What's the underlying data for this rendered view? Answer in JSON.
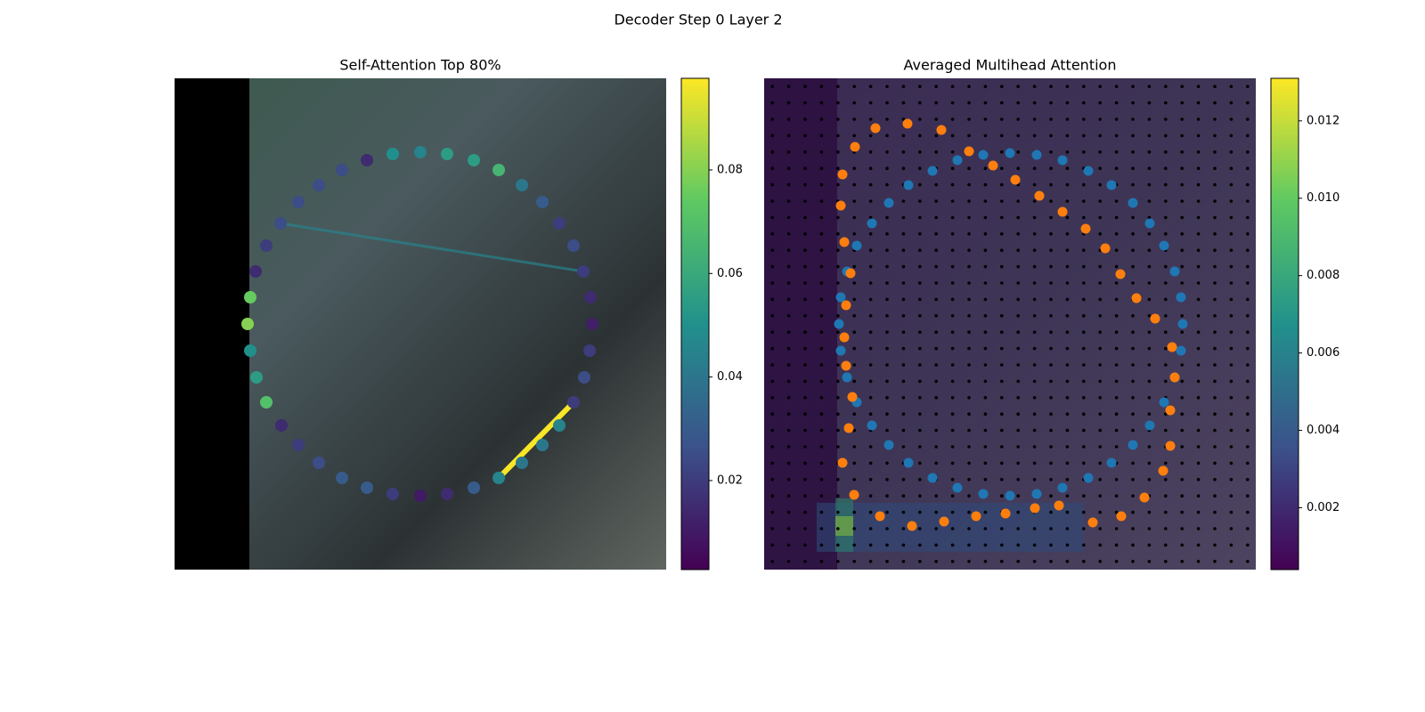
{
  "title": "Decoder Step 0 Layer 2",
  "chart_data": [
    {
      "type": "scatter",
      "title": "Self-Attention Top 80%",
      "xlim": [
        0,
        552
      ],
      "ylim": [
        552,
        0
      ],
      "x": [
        216,
        245,
        276,
        306,
        336,
        364,
        390,
        413,
        432,
        448,
        459,
        467,
        469,
        466,
        460,
        448,
        432,
        413,
        390,
        364,
        336,
        306,
        276,
        245,
        216,
        188,
        162,
        139,
        120,
        103,
        92,
        85,
        82,
        85,
        91,
        103,
        119,
        139,
        162,
        188
      ],
      "y": [
        92,
        85,
        83,
        85,
        92,
        103,
        120,
        139,
        163,
        188,
        217,
        246,
        276,
        306,
        336,
        364,
        390,
        412,
        432,
        449,
        460,
        467,
        469,
        467,
        460,
        449,
        432,
        412,
        390,
        364,
        336,
        306,
        276,
        246,
        217,
        188,
        163,
        139,
        120,
        103
      ],
      "values": [
        0.015,
        0.05,
        0.045,
        0.055,
        0.055,
        0.065,
        0.04,
        0.03,
        0.02,
        0.025,
        0.02,
        0.015,
        0.012,
        0.02,
        0.025,
        0.02,
        0.045,
        0.04,
        0.04,
        0.045,
        0.03,
        0.015,
        0.01,
        0.02,
        0.03,
        0.03,
        0.025,
        0.02,
        0.015,
        0.07,
        0.055,
        0.05,
        0.08,
        0.075,
        0.015,
        0.02,
        0.025,
        0.025,
        0.025,
        0.025
      ],
      "links": [
        {
          "from": 19,
          "to": 15,
          "value": 0.097
        },
        {
          "from": 36,
          "to": 10,
          "value": 0.045
        }
      ],
      "colorbar": {
        "colormap": "viridis",
        "lim": [
          0.0028,
          0.0977
        ],
        "ticks": [
          0.02,
          0.04,
          0.06,
          0.08
        ]
      }
    },
    {
      "type": "scatter",
      "title": "Averaged Multihead Attention",
      "xlim": [
        0,
        552
      ],
      "ylim": [
        552,
        0
      ],
      "series": [
        {
          "color": "#1f77b4",
          "x": [
            162,
            189,
            217,
            246,
            276,
            306,
            335,
            364,
            390,
            414,
            433,
            449,
            461,
            468,
            470,
            468,
            461,
            449,
            433,
            414,
            390,
            364,
            335,
            306,
            276,
            246,
            217,
            189,
            162,
            140,
            121,
            104,
            93,
            86,
            84,
            86,
            93,
            104,
            121,
            140
          ],
          "y": [
            120,
            104,
            92,
            86,
            84,
            86,
            92,
            104,
            120,
            140,
            163,
            188,
            217,
            246,
            276,
            306,
            336,
            364,
            390,
            412,
            432,
            449,
            460,
            467,
            469,
            467,
            460,
            449,
            432,
            412,
            390,
            364,
            336,
            306,
            276,
            246,
            217,
            188,
            163,
            140
          ]
        },
        {
          "color": "#ff7f0e",
          "x": [
            161,
            199,
            230,
            257,
            282,
            309,
            335,
            361,
            383,
            400,
            418,
            439,
            458,
            461,
            456,
            456,
            448,
            427,
            401,
            369,
            331,
            304,
            271,
            238,
            202,
            166,
            130,
            101,
            88,
            95,
            99,
            92,
            90,
            92,
            97,
            90,
            86,
            88,
            102,
            125
          ],
          "y": [
            51,
            58,
            82,
            98,
            114,
            132,
            150,
            169,
            191,
            220,
            247,
            270,
            302,
            336,
            373,
            413,
            441,
            471,
            492,
            499,
            480,
            483,
            489,
            492,
            498,
            503,
            492,
            468,
            432,
            393,
            358,
            323,
            291,
            255,
            219,
            184,
            143,
            108,
            77,
            56
          ]
        }
      ],
      "colorbar": {
        "colormap": "viridis",
        "lim": [
          0.0004,
          0.0131
        ],
        "ticks": [
          0.002,
          0.004,
          0.006,
          0.008,
          {
            "value": 0.01,
            "label": "0.010"
          },
          0.012
        ]
      }
    }
  ]
}
